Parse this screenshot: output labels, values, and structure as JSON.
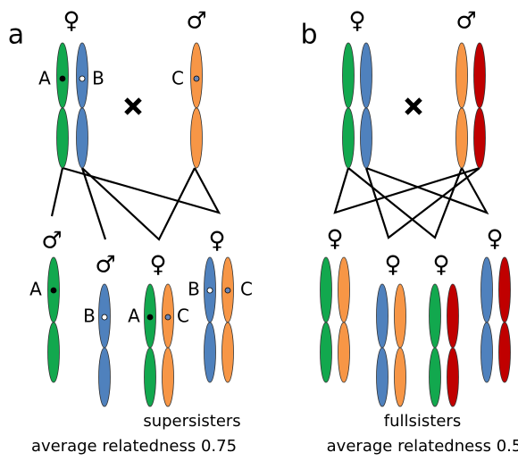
{
  "panels": [
    {
      "label": "a",
      "parents": {
        "female": {
          "symbol": "♀",
          "alleles": [
            "A",
            "B"
          ]
        },
        "male": {
          "symbol": "♂",
          "alleles": [
            "C"
          ]
        }
      },
      "offspring": [
        {
          "symbol": "♂",
          "alleles": [
            "A"
          ]
        },
        {
          "symbol": "♂",
          "alleles": [
            "B"
          ]
        },
        {
          "symbol": "♀",
          "alleles": [
            "A",
            "C"
          ]
        },
        {
          "symbol": "♀",
          "alleles": [
            "B",
            "C"
          ]
        }
      ],
      "caption": {
        "title": "supersisters",
        "text": "average relatedness 0.75"
      }
    },
    {
      "label": "b",
      "parents": {
        "female": {
          "symbol": "♀"
        },
        "male": {
          "symbol": "♂"
        }
      },
      "offspring": [
        {
          "symbol": "♀"
        },
        {
          "symbol": "♀"
        },
        {
          "symbol": "♀"
        },
        {
          "symbol": "♀"
        }
      ],
      "caption": {
        "title": "fullsisters",
        "text": "average relatedness 0.5"
      }
    }
  ]
}
